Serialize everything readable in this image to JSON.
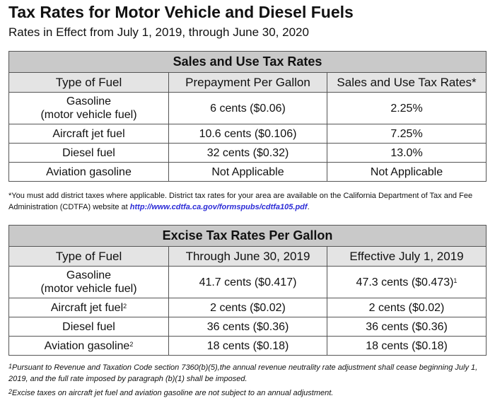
{
  "title": "Tax Rates for Motor Vehicle and Diesel Fuels",
  "subtitle": "Rates in Effect from July 1, 2019, through June 30, 2020",
  "sales": {
    "title": "Sales and Use Tax Rates",
    "headers": [
      "Type of Fuel",
      "Prepayment Per Gallon",
      "Sales and Use Tax Rates*"
    ],
    "rows": [
      {
        "fuel": "Gasoline",
        "fuel2": "(motor vehicle fuel)",
        "a": "6 cents ($0.06)",
        "b": "2.25%"
      },
      {
        "fuel": "Aircraft jet fuel",
        "a": "10.6 cents ($0.106)",
        "b": "7.25%"
      },
      {
        "fuel": "Diesel fuel",
        "a": "32 cents ($0.32)",
        "b": "13.0%"
      },
      {
        "fuel": "Aviation gasoline",
        "a": "Not Applicable",
        "b": "Not Applicable"
      }
    ]
  },
  "sales_note": {
    "text": "*You must add district taxes where applicable. District tax rates for your area are available on the California Department of Tax and Fee Administration (CDTFA) website at ",
    "link": "http://www.cdtfa.ca.gov/formspubs/cdtfa105.pdf",
    "end": "."
  },
  "excise": {
    "title": "Excise Tax Rates Per Gallon",
    "headers": [
      "Type of Fuel",
      "Through June 30, 2019",
      "Effective July 1, 2019"
    ],
    "rows": [
      {
        "fuel": "Gasoline",
        "fuel2": "(motor vehicle fuel)",
        "a": "41.7 cents ($0.417)",
        "b": "47.3 cents ($0.473)",
        "b_sup": "1"
      },
      {
        "fuel": "Aircraft jet fuel",
        "fuel_sup": "2",
        "a": "2 cents ($0.02)",
        "b": "2 cents ($0.02)"
      },
      {
        "fuel": "Diesel fuel",
        "a": "36 cents ($0.36)",
        "b": "36 cents ($0.36)"
      },
      {
        "fuel": "Aviation gasoline",
        "fuel_sup": "2",
        "a": "18 cents ($0.18)",
        "b": "18 cents ($0.18)"
      }
    ]
  },
  "footnotes": [
    {
      "mark": "1",
      "text": "Pursuant to Revenue and Taxation Code section 7360(b)(5),the annual revenue neutrality rate adjustment shall cease beginning July 1, 2019, and the full rate imposed by paragraph (b)(1) shall be imposed."
    },
    {
      "mark": "2",
      "text": "Excise taxes on aircraft jet fuel and aviation gasoline are not subject to an annual adjustment."
    }
  ],
  "colors": {
    "title_row": "#c9c9c9",
    "header_row": "#e4e4e4",
    "link": "#2b2bd6"
  }
}
